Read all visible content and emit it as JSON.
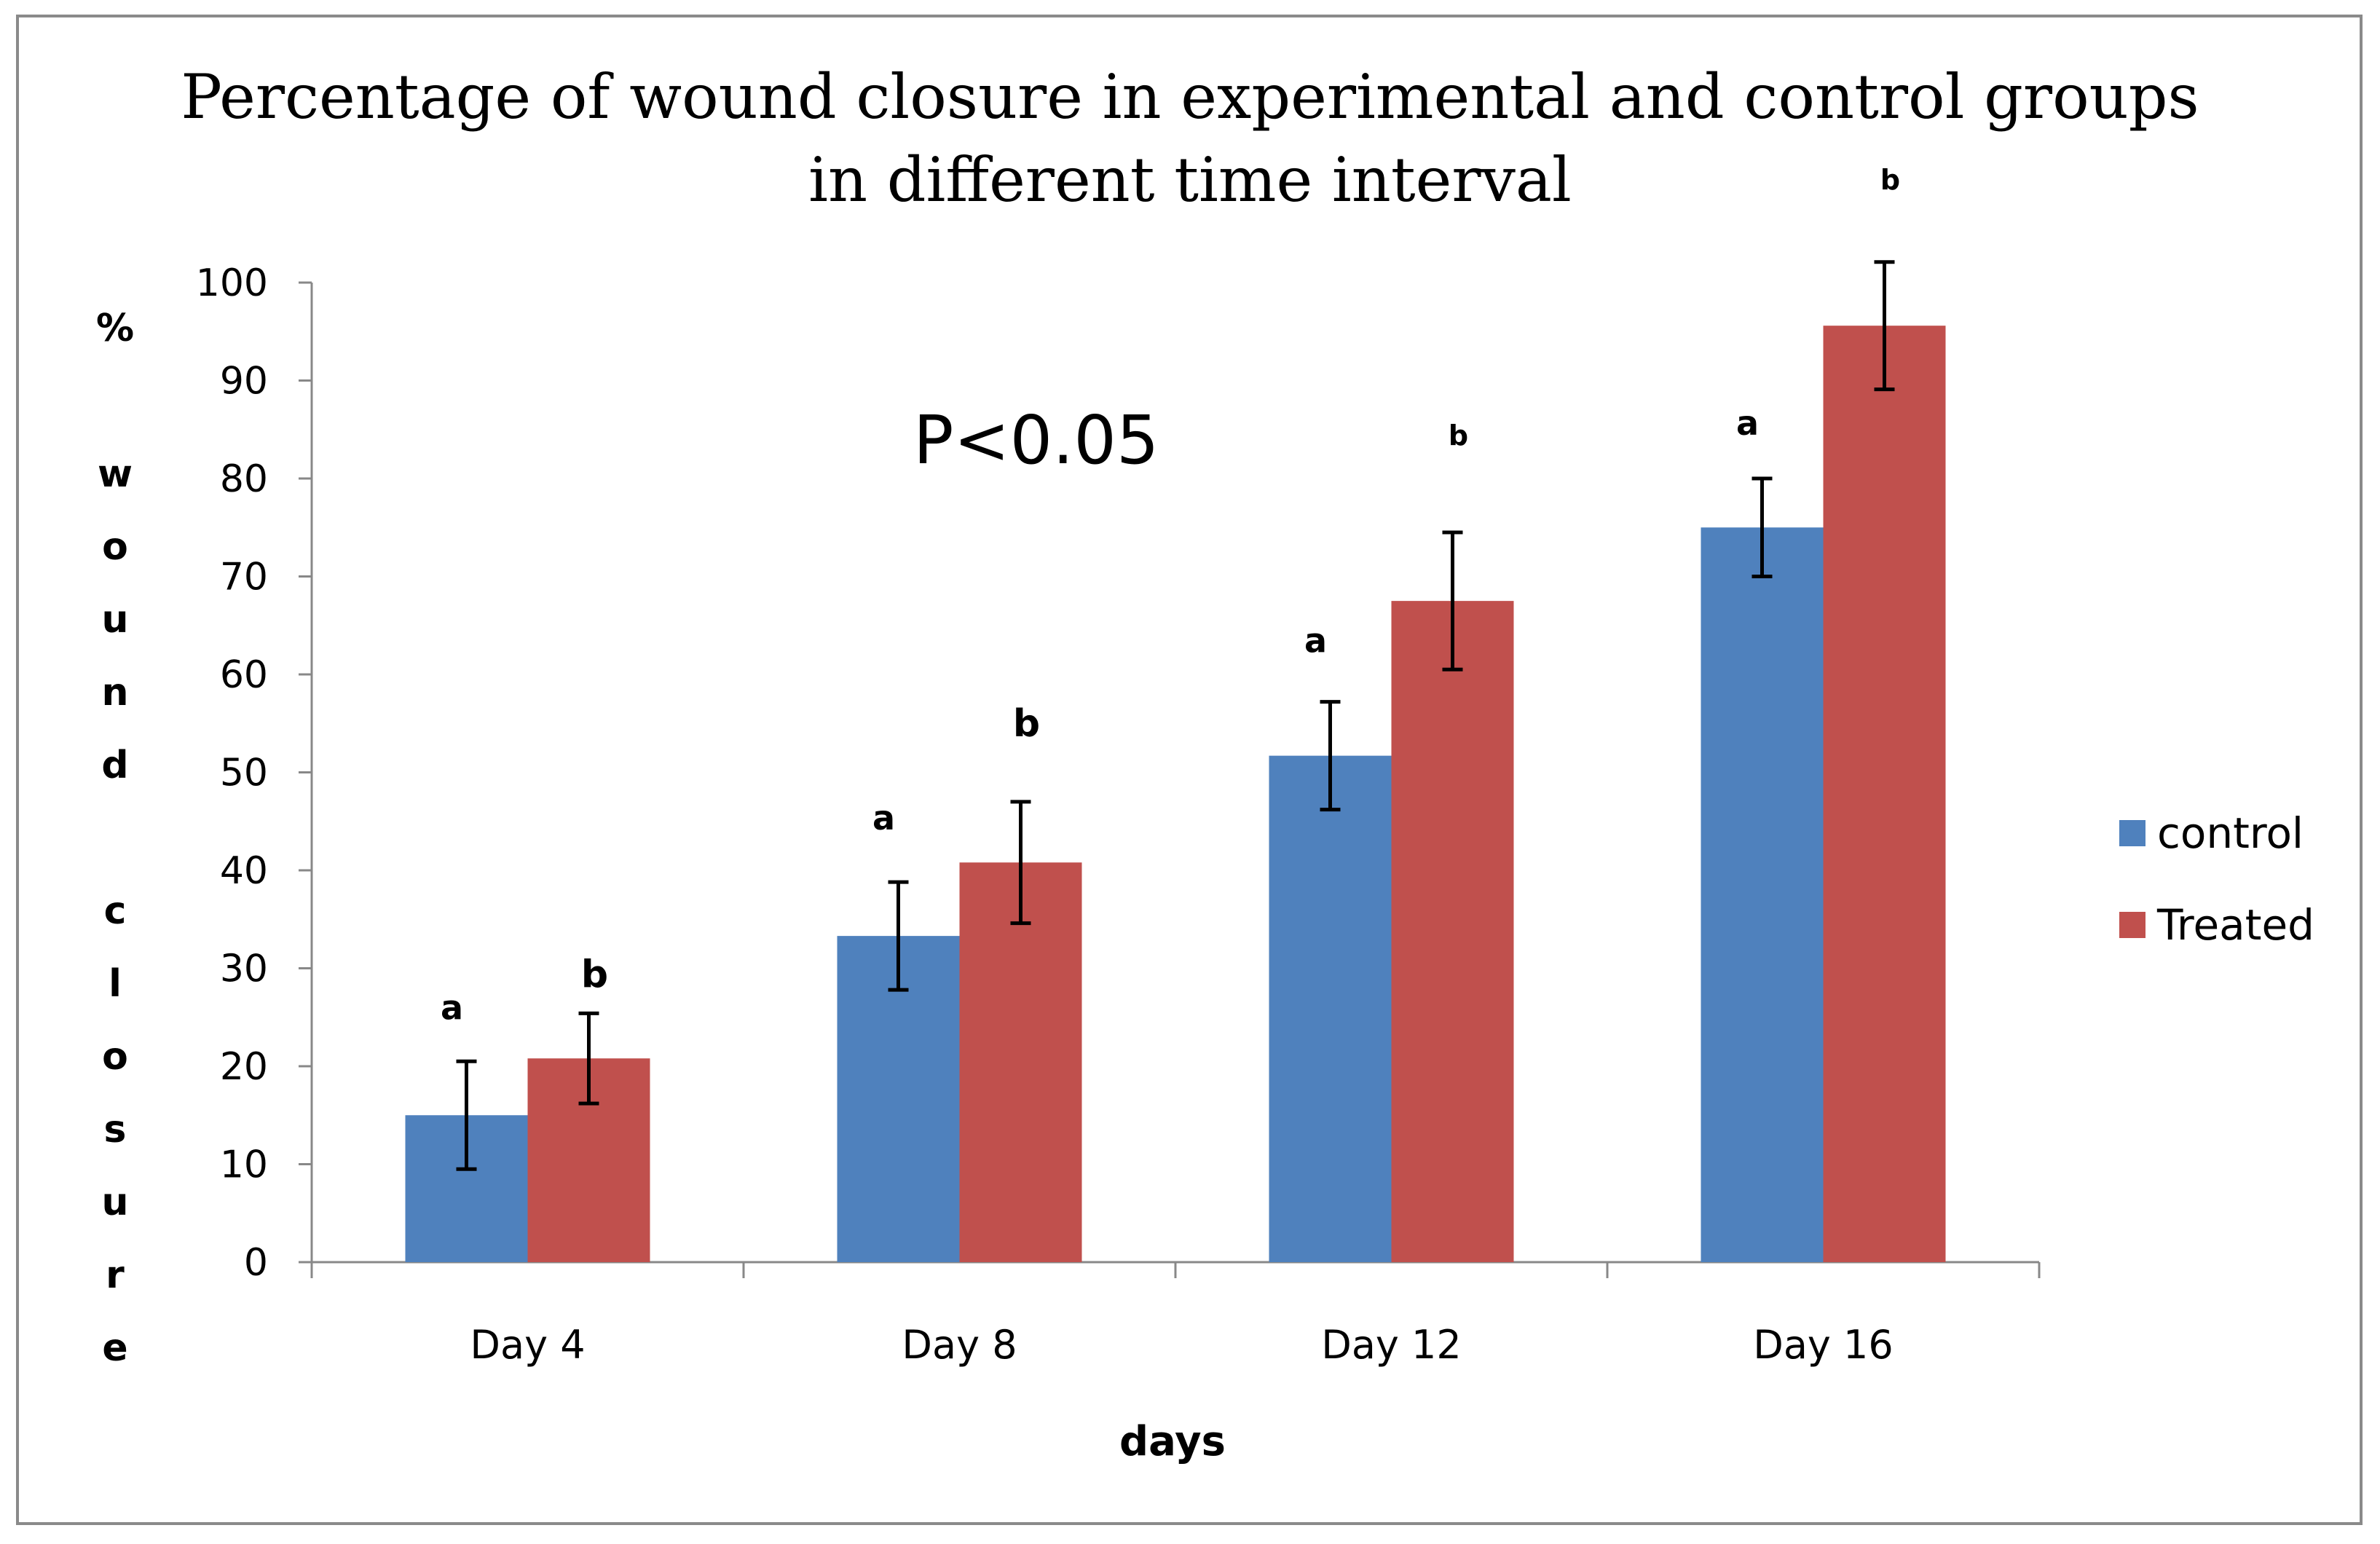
{
  "chart_data": {
    "type": "bar",
    "title_lines": [
      "Percentage of wound closure in experimental and control groups",
      "in different time interval"
    ],
    "xlabel": "days",
    "ylabel": "% wound closure",
    "ylabel_chars": [
      "%",
      "w",
      "o",
      "u",
      "n",
      "d",
      "c",
      "l",
      "o",
      "s",
      "u",
      "r",
      "e"
    ],
    "categories": [
      "Day 4",
      "Day 8",
      "Day 12",
      "Day 16"
    ],
    "ylim": [
      0,
      100
    ],
    "yticks": [
      0,
      10,
      20,
      30,
      40,
      50,
      60,
      70,
      80,
      90,
      100
    ],
    "grid": false,
    "legend_position": "right",
    "series": [
      {
        "name": "control",
        "color": "#4F81BD",
        "values": [
          15,
          33.3,
          51.7,
          75
        ],
        "errors": [
          5.5,
          5.5,
          5.5,
          5
        ],
        "significance": [
          "a",
          "a",
          "a",
          "a"
        ]
      },
      {
        "name": "Treated",
        "color": "#C0504D",
        "values": [
          20.8,
          40.8,
          67.5,
          95.6
        ],
        "errors": [
          4.6,
          6.2,
          7,
          6.5
        ],
        "significance": [
          "b",
          "b",
          "b",
          "b"
        ]
      }
    ],
    "annotation": "P<0.05"
  }
}
